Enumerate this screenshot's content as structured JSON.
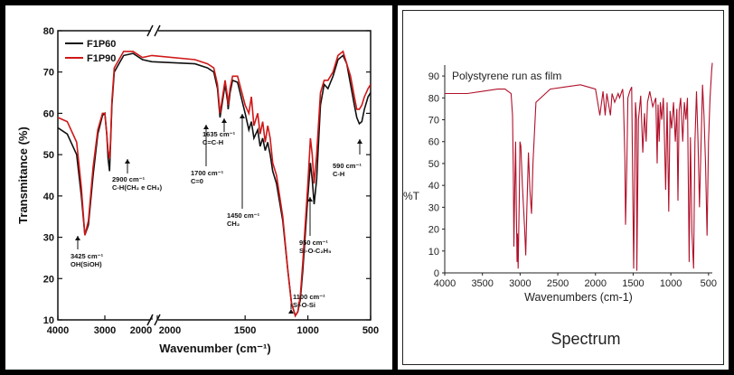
{
  "chart_data": [
    {
      "type": "line",
      "xlabel": "Wavenumber (cm⁻¹)",
      "ylabel": "Transmitance (%)",
      "xlim": [
        4000,
        500
      ],
      "ylim": [
        10,
        80
      ],
      "axis_break": [
        2000,
        2200
      ],
      "x_ticks": [
        "4000",
        "3000",
        "2000",
        "2000",
        "1500",
        "1000",
        "500"
      ],
      "y_ticks": [
        "10",
        "20",
        "30",
        "40",
        "50",
        "60",
        "70",
        "80"
      ],
      "legend_placement": "top-left",
      "legend": [
        "F1P60",
        "F1P90"
      ],
      "colors": {
        "F1P60": "#111111",
        "F1P90": "#d01818"
      },
      "series": [
        {
          "name": "F1P60",
          "x": [
            4000,
            3800,
            3600,
            3500,
            3425,
            3350,
            3250,
            3150,
            3050,
            3000,
            2960,
            2930,
            2900,
            2880,
            2850,
            2800,
            2600,
            2400,
            2200,
            2000,
            1900,
            1800,
            1750,
            1720,
            1700,
            1680,
            1660,
            1640,
            1635,
            1620,
            1600,
            1560,
            1500,
            1470,
            1450,
            1430,
            1400,
            1380,
            1360,
            1340,
            1320,
            1300,
            1280,
            1250,
            1200,
            1160,
            1130,
            1100,
            1080,
            1060,
            1040,
            1000,
            980,
            965,
            950,
            930,
            900,
            870,
            840,
            800,
            760,
            720,
            690,
            660,
            630,
            610,
            590,
            570,
            550,
            520,
            500
          ],
          "y": [
            56.5,
            55,
            50,
            40,
            30.5,
            33,
            45,
            55,
            59.5,
            60,
            55,
            49,
            46,
            52,
            62,
            70,
            74,
            74.5,
            73,
            72.5,
            72,
            71,
            70,
            66,
            59,
            63,
            67,
            63,
            61,
            65,
            68,
            67.5,
            60,
            56,
            58,
            54,
            56,
            52,
            54,
            51,
            53,
            50,
            46,
            43,
            34,
            22,
            14,
            11,
            12,
            15,
            22,
            40,
            48,
            44,
            38,
            44,
            62,
            67,
            66,
            69,
            73,
            74,
            72,
            67,
            62,
            59,
            57.5,
            58,
            61,
            64,
            65
          ]
        },
        {
          "name": "F1P90",
          "x": [
            4000,
            3800,
            3600,
            3500,
            3425,
            3350,
            3250,
            3150,
            3050,
            3000,
            2960,
            2930,
            2900,
            2880,
            2850,
            2800,
            2600,
            2400,
            2200,
            2000,
            1900,
            1800,
            1750,
            1720,
            1700,
            1680,
            1660,
            1640,
            1635,
            1620,
            1600,
            1560,
            1500,
            1470,
            1450,
            1430,
            1400,
            1380,
            1360,
            1340,
            1320,
            1300,
            1280,
            1250,
            1200,
            1160,
            1130,
            1100,
            1080,
            1060,
            1040,
            1000,
            980,
            965,
            950,
            930,
            900,
            870,
            840,
            800,
            760,
            720,
            690,
            660,
            630,
            610,
            590,
            570,
            550,
            520,
            500
          ],
          "y": [
            59,
            58,
            53,
            42,
            30.5,
            34,
            47,
            56,
            60,
            60,
            55,
            51,
            49,
            53,
            63,
            71,
            75,
            75,
            73.5,
            74,
            73,
            72,
            71,
            67,
            60,
            64,
            68,
            64,
            62,
            66,
            69,
            69,
            62,
            60,
            64,
            57,
            60,
            55,
            58,
            53,
            57,
            54,
            48,
            45,
            35,
            22,
            14,
            11,
            12,
            16,
            24,
            43,
            54,
            50,
            43,
            50,
            65,
            68,
            68,
            70,
            74,
            75,
            72,
            69,
            64,
            61,
            61,
            62,
            64,
            66,
            67
          ]
        }
      ],
      "annotations": [
        {
          "label": "3425 cm⁻¹",
          "sub": "OH(SiOH)"
        },
        {
          "label": "2900 cm⁻¹",
          "sub": "C-H(CH₂ e CH₃)"
        },
        {
          "label": "1700 cm⁻¹",
          "sub": "C=0"
        },
        {
          "label": "1635 cm⁻¹",
          "sub": "C=C-H"
        },
        {
          "label": "1450 cm⁻¹",
          "sub": "CH₂"
        },
        {
          "label": "950 cm⁻¹",
          "sub": "Si-O-C₂H₅"
        },
        {
          "label": "1100 cm⁻¹",
          "sub": "Si-O-Si"
        },
        {
          "label": "590 cm⁻¹",
          "sub": "C-H"
        }
      ]
    },
    {
      "type": "line",
      "title": "Polystyrene run as film",
      "subtitle": "Spectrum",
      "xlabel": "Wavenumbers (cm-1)",
      "ylabel": "%T",
      "xlim": [
        4000,
        450
      ],
      "ylim": [
        0,
        95
      ],
      "x_ticks": [
        4000,
        3500,
        3000,
        2500,
        2000,
        1500,
        1000,
        500
      ],
      "y_ticks": [
        0,
        10,
        20,
        30,
        40,
        50,
        60,
        70,
        80,
        90
      ],
      "colors": {
        "line": "#b0102a"
      },
      "series": [
        {
          "x": [
            4000,
            3700,
            3500,
            3300,
            3200,
            3120,
            3100,
            3090,
            3082,
            3070,
            3060,
            3050,
            3040,
            3035,
            3026,
            3010,
            3002,
            2990,
            2970,
            2940,
            2925,
            2910,
            2890,
            2870,
            2849,
            2830,
            2790,
            2600,
            2400,
            2200,
            2100,
            2000,
            1942,
            1900,
            1871,
            1850,
            1802,
            1780,
            1745,
            1700,
            1680,
            1640,
            1630,
            1610,
            1601,
            1585,
            1570,
            1545,
            1520,
            1493,
            1470,
            1455,
            1452,
            1430,
            1400,
            1372,
            1350,
            1328,
            1310,
            1280,
            1240,
            1200,
            1181,
            1170,
            1155,
            1140,
            1120,
            1100,
            1090,
            1069,
            1050,
            1028,
            1010,
            990,
            965,
            940,
            920,
            906,
            890,
            870,
            842,
            820,
            800,
            780,
            757,
            740,
            720,
            698,
            680,
            660,
            640,
            620,
            580,
            560,
            540,
            520,
            500,
            480,
            460,
            450
          ],
          "y": [
            82,
            82,
            83,
            84,
            84,
            82,
            72,
            45,
            12,
            40,
            60,
            30,
            5,
            18,
            2,
            35,
            60,
            58,
            40,
            20,
            8,
            30,
            55,
            38,
            27,
            50,
            78,
            84,
            85,
            86,
            85,
            84,
            72,
            83,
            72,
            82,
            72,
            82,
            78,
            82,
            80,
            84,
            80,
            52,
            22,
            48,
            80,
            83,
            85,
            2,
            78,
            70,
            1,
            70,
            81,
            55,
            73,
            60,
            78,
            83,
            76,
            80,
            50,
            77,
            60,
            78,
            70,
            80,
            70,
            38,
            78,
            28,
            74,
            66,
            78,
            60,
            75,
            33,
            74,
            80,
            60,
            78,
            70,
            80,
            5,
            62,
            18,
            2,
            60,
            83,
            60,
            30,
            86,
            72,
            50,
            17,
            60,
            80,
            92,
            96
          ]
        }
      ]
    }
  ]
}
